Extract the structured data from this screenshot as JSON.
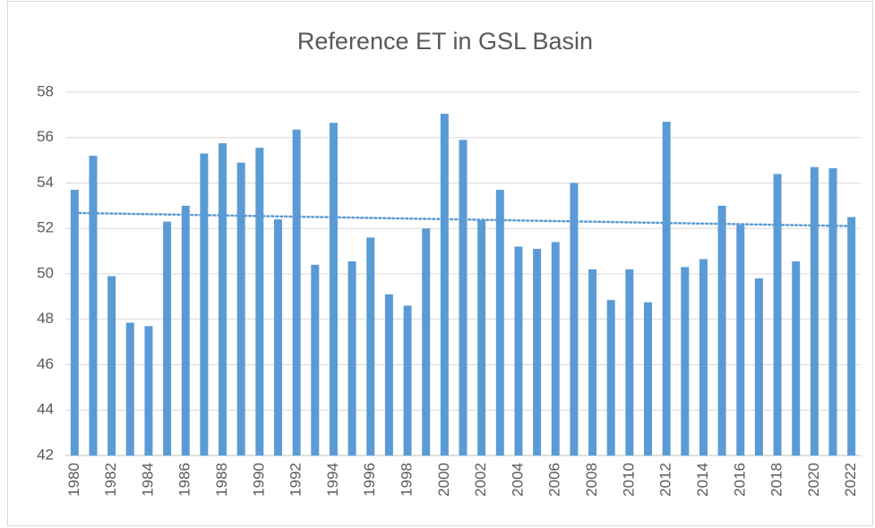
{
  "chart_data": {
    "type": "bar",
    "title": "Reference ET in GSL Basin",
    "categories": [
      "1980",
      null,
      "1982",
      null,
      "1984",
      null,
      "1986",
      null,
      "1988",
      null,
      "1990",
      null,
      "1992",
      null,
      "1994",
      null,
      "1996",
      null,
      "1998",
      null,
      "2000",
      null,
      "2002",
      null,
      "2004",
      null,
      "2006",
      null,
      "2008",
      null,
      "2010",
      null,
      "2012",
      null,
      "2014",
      null,
      "2016",
      null,
      "2018",
      null,
      "2020",
      null,
      "2022"
    ],
    "values": [
      53.7,
      55.2,
      49.9,
      47.85,
      47.7,
      52.3,
      53.0,
      55.3,
      55.75,
      54.9,
      55.55,
      52.4,
      56.35,
      50.4,
      56.65,
      50.55,
      51.6,
      49.1,
      48.6,
      52.0,
      57.05,
      55.9,
      52.35,
      53.7,
      51.2,
      51.1,
      51.4,
      54.0,
      50.2,
      48.85,
      50.2,
      48.75,
      56.7,
      50.3,
      50.65,
      53.0,
      52.15,
      49.8,
      54.4,
      50.55,
      54.7,
      54.65,
      52.5
    ],
    "color": "#5b9bd5",
    "ylim": [
      42,
      58
    ],
    "yticks": [
      42,
      44,
      46,
      48,
      50,
      52,
      54,
      56,
      58
    ],
    "grid": true,
    "trendline": "linear"
  }
}
